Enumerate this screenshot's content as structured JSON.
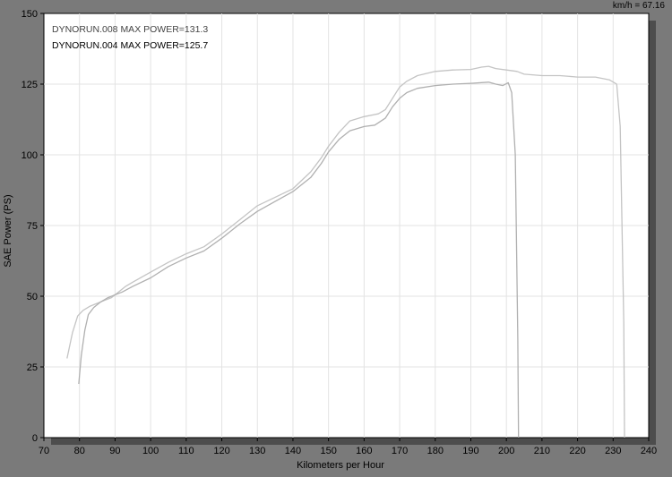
{
  "readout": "km/h = 67.16",
  "colors": {
    "background": "#7a7a7a",
    "plot_bg": "#ffffff",
    "grid": "#e3e3e3",
    "axis": "#000000",
    "shadow": "#4d4d4d",
    "series_008": "#c4c4c4",
    "series_004": "#b0b0b0"
  },
  "chart_data": {
    "type": "line",
    "xlabel": "Kilometers per Hour",
    "ylabel": "SAE  Power   (PS)",
    "xlim": [
      70,
      240
    ],
    "ylim": [
      0,
      150
    ],
    "x_ticks": [
      70,
      80,
      90,
      100,
      110,
      120,
      130,
      140,
      150,
      160,
      170,
      180,
      190,
      200,
      210,
      220,
      230,
      240
    ],
    "y_ticks": [
      0,
      25,
      50,
      75,
      100,
      125,
      150
    ],
    "grid": true,
    "legend_position": "top-left",
    "legend": [
      "DYNORUN.008  MAX POWER=131.3",
      "DYNORUN.004  MAX POWER=125.7"
    ],
    "series": [
      {
        "name": "DYNORUN.008",
        "x": [
          76.5,
          78,
          79.5,
          81,
          83,
          85,
          87,
          89,
          91,
          93,
          95,
          100,
          105,
          110,
          115,
          120,
          125,
          130,
          135,
          140,
          145,
          148,
          150,
          153,
          156,
          160,
          164,
          166,
          168,
          170,
          172,
          175,
          180,
          185,
          190,
          193,
          195,
          197,
          200,
          203,
          205,
          210,
          215,
          220,
          225,
          229,
          231,
          232,
          233,
          233.2
        ],
        "y": [
          28,
          37,
          43,
          45,
          46.5,
          47.5,
          48.5,
          49.5,
          51.5,
          53.5,
          55,
          58.5,
          62,
          65,
          67.5,
          72,
          77,
          82,
          85,
          88,
          94,
          99,
          103,
          108,
          112,
          113.5,
          114.5,
          116,
          120,
          124,
          126,
          128,
          129.5,
          130,
          130.2,
          131,
          131.3,
          130.5,
          130,
          129.5,
          128.5,
          128,
          128,
          127.5,
          127.5,
          126.5,
          125,
          110,
          40,
          0
        ]
      },
      {
        "name": "DYNORUN.004",
        "x": [
          79.8,
          80.5,
          81.5,
          82.5,
          84,
          86,
          88,
          90,
          92,
          95,
          100,
          105,
          110,
          115,
          120,
          125,
          130,
          135,
          140,
          145,
          148,
          150,
          153,
          156,
          160,
          163,
          166,
          168,
          170,
          172,
          175,
          180,
          185,
          190,
          195,
          197,
          199,
          200.5,
          201.5,
          202.5,
          203.2,
          203.4
        ],
        "y": [
          19,
          29,
          38,
          43.5,
          46,
          48,
          49.5,
          50.5,
          51.5,
          53.5,
          56.5,
          60.5,
          63.5,
          66,
          70.5,
          75.5,
          80,
          83.5,
          87,
          92,
          97,
          101,
          105.5,
          108.5,
          110,
          110.5,
          113,
          117,
          120,
          122,
          123.5,
          124.5,
          125,
          125.3,
          125.7,
          125,
          124.5,
          125.5,
          122,
          100,
          35,
          0
        ]
      }
    ]
  }
}
